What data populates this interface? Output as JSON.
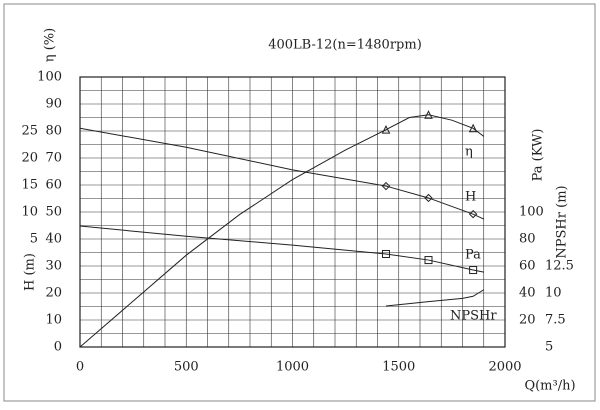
{
  "chart_data": {
    "type": "line",
    "title": "400LB-12(n=1480rpm)",
    "x_label": "Q(m³/h)",
    "xlim": [
      0,
      2000
    ],
    "xticks": [
      0,
      500,
      1000,
      1500,
      2000
    ],
    "xminorticks": [
      100,
      200,
      300,
      400,
      600,
      700,
      800,
      900,
      1100,
      1200,
      1300,
      1400,
      1600,
      1700,
      1800,
      1900
    ],
    "grid": true,
    "color": "#222222",
    "axes": [
      {
        "label": "η (%)",
        "lim": [
          0,
          100
        ],
        "ticks": [
          0,
          10,
          20,
          30,
          40,
          50,
          60,
          70,
          80,
          90,
          100
        ],
        "minorticks": [
          5,
          15,
          25,
          35,
          45,
          55,
          65,
          75,
          85,
          95
        ]
      },
      {
        "label": "H (m)",
        "lim": [
          -15,
          35
        ],
        "ticks": [
          5,
          10,
          15,
          20,
          25
        ]
      },
      {
        "label": "Pa (KW)",
        "lim": [
          0,
          200
        ],
        "ticks": [
          20,
          40,
          60,
          80,
          100
        ]
      },
      {
        "label": "NPSHr (m)",
        "lim": [
          5,
          30
        ],
        "ticks": [
          5,
          7.5,
          10,
          12.5
        ]
      }
    ],
    "series": [
      {
        "name": "η",
        "axis": 0,
        "x": [
          0,
          250,
          500,
          750,
          1000,
          1250,
          1440,
          1550,
          1640,
          1750,
          1850,
          1900
        ],
        "values": [
          0,
          17,
          34,
          49,
          62,
          73,
          80.5,
          85,
          86,
          84,
          81,
          78
        ],
        "marker": "triangle",
        "marker_x": [
          1440,
          1640,
          1850
        ],
        "marker_values": [
          80.5,
          86,
          81
        ]
      },
      {
        "name": "H",
        "axis": 1,
        "x": [
          0,
          500,
          1000,
          1440,
          1640,
          1850,
          1900
        ],
        "values": [
          25.5,
          22,
          17.8,
          14.8,
          12.6,
          9.6,
          8.7
        ],
        "marker": "diamond",
        "marker_x": [
          1440,
          1640,
          1850
        ],
        "marker_values": [
          14.8,
          12.6,
          9.6
        ]
      },
      {
        "name": "Pa",
        "axis": 2,
        "x": [
          0,
          500,
          1000,
          1440,
          1640,
          1850,
          1900
        ],
        "values": [
          89.6,
          82,
          75.5,
          68.9,
          64.4,
          57,
          55.5
        ],
        "marker": "square",
        "marker_x": [
          1440,
          1640,
          1850
        ],
        "marker_values": [
          68.9,
          64.4,
          57
        ]
      },
      {
        "name": "NPSHr",
        "axis": 3,
        "x": [
          1440,
          1640,
          1800,
          1850,
          1900
        ],
        "values": [
          8.8,
          9.2,
          9.5,
          9.7,
          10.3
        ]
      }
    ]
  }
}
